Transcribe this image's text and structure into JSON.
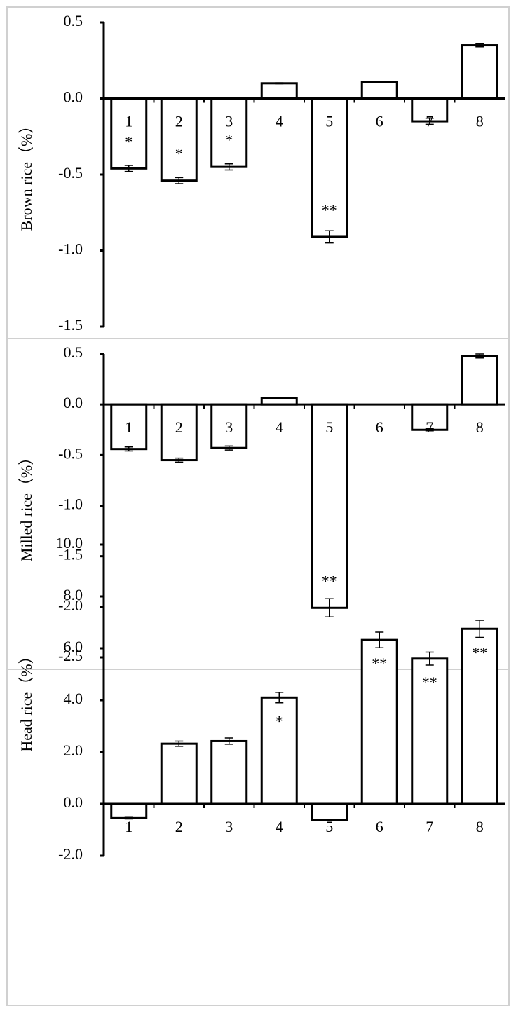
{
  "chart_data": [
    {
      "type": "bar",
      "ylabel": "Brown rice（%）",
      "color": "#ffffff",
      "edgecolor": "#000000",
      "categories": [
        "1",
        "2",
        "3",
        "4",
        "5",
        "6",
        "7",
        "8"
      ],
      "values": [
        -0.46,
        -0.54,
        -0.45,
        0.1,
        -0.91,
        0.11,
        -0.15,
        0.35
      ],
      "errors": [
        0.02,
        0.02,
        0.02,
        0.003,
        0.04,
        0.003,
        0.02,
        0.01
      ],
      "annotations": [
        "*",
        "*",
        "*",
        null,
        "**",
        null,
        null,
        null
      ],
      "ylim": [
        -1.5,
        0.5
      ],
      "yticks": [
        0.5,
        {
          "value": 0,
          "label": "0.0"
        },
        -0.5,
        {
          "value": -1,
          "label": "-1.0"
        },
        -1.5
      ]
    },
    {
      "type": "bar",
      "ylabel": "Milled rice（%）",
      "color": "#ffffff",
      "edgecolor": "#000000",
      "categories": [
        "1",
        "2",
        "3",
        "4",
        "5",
        "6",
        "7",
        "8"
      ],
      "values": [
        -0.44,
        -0.55,
        -0.43,
        0.06,
        -2.01,
        0,
        -0.25,
        0.48
      ],
      "errors": [
        0.02,
        0.02,
        0.02,
        0.003,
        0.09,
        0,
        0.01,
        0.02
      ],
      "annotations": [
        null,
        null,
        null,
        null,
        "**",
        null,
        null,
        null
      ],
      "ylim": [
        -2.5,
        0.5
      ],
      "yticks": [
        0.5,
        {
          "value": 0,
          "label": "0.0"
        },
        -0.5,
        {
          "value": -1,
          "label": "-1.0"
        },
        -1.5,
        {
          "value": -2,
          "label": "-2.0"
        },
        -2.5
      ]
    },
    {
      "type": "bar",
      "ylabel": "Head rice（%）",
      "color": "#ffffff",
      "edgecolor": "#000000",
      "categories": [
        "1",
        "2",
        "3",
        "4",
        "5",
        "6",
        "7",
        "8"
      ],
      "values": [
        -0.55,
        2.32,
        2.42,
        4.1,
        -0.62,
        6.32,
        5.6,
        6.75
      ],
      "errors": [
        0.03,
        0.1,
        0.12,
        0.2,
        0.03,
        0.3,
        0.25,
        0.33
      ],
      "annotations": [
        null,
        null,
        null,
        "*",
        null,
        "**",
        "**",
        "**"
      ],
      "ylim": [
        -2,
        10
      ],
      "yticks": [
        {
          "value": 10,
          "label": "10.0"
        },
        {
          "value": 8,
          "label": "8.0"
        },
        {
          "value": 6,
          "label": "6.0"
        },
        {
          "value": 4,
          "label": "4.0"
        },
        {
          "value": 2,
          "label": "2.0"
        },
        {
          "value": 0,
          "label": "0.0"
        },
        {
          "value": -2,
          "label": "-2.0"
        }
      ]
    }
  ]
}
